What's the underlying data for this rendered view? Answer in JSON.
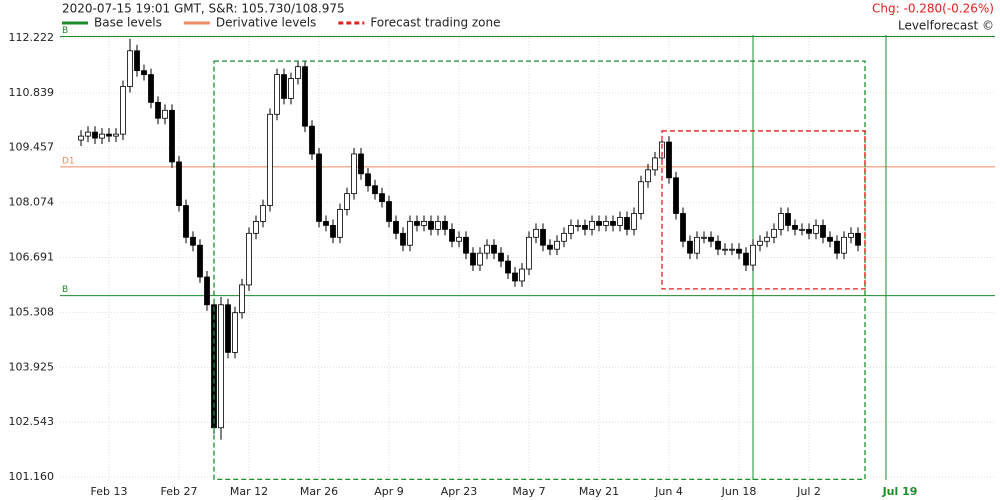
{
  "chart_data": {
    "type": "candlestick",
    "title": "2020-07-15 19:01 GMT,  S&R: 105.730/108.975",
    "change": "Chg: -0.280(-0.26%)",
    "brand": "Levelforecast ©",
    "legend": [
      {
        "name": "Base levels",
        "color": "#1a8c2a",
        "style": "solid"
      },
      {
        "name": "Derivative levels",
        "color": "#ef8a62",
        "style": "solid"
      },
      {
        "name": "Forecast trading zone",
        "color": "#e02020",
        "style": "dashed"
      }
    ],
    "categories": [
      null,
      null,
      null,
      null,
      "Feb 13",
      null,
      null,
      null,
      null,
      null,
      null,
      null,
      null,
      null,
      "Feb 27",
      null,
      null,
      null,
      null,
      null,
      null,
      null,
      null,
      null,
      "Mar 12",
      null,
      null,
      null,
      null,
      null,
      null,
      null,
      null,
      null,
      "Mar 26",
      null,
      null,
      null,
      null,
      null,
      null,
      null,
      null,
      null,
      "Apr 9",
      null,
      null,
      null,
      null,
      null,
      null,
      null,
      null,
      null,
      "Apr 23",
      null,
      null,
      null,
      null,
      null,
      null,
      null,
      null,
      null,
      "May 7",
      null,
      null,
      null,
      null,
      null,
      null,
      null,
      null,
      null,
      "May 21",
      null,
      null,
      null,
      null,
      null,
      null,
      null,
      null,
      null,
      "Jun 4",
      null,
      null,
      null,
      null,
      null,
      null,
      null,
      null,
      null,
      "Jun 18",
      null,
      null,
      null,
      null,
      null,
      null,
      null,
      null,
      null,
      "Jul 2",
      null,
      null,
      null,
      null,
      null,
      null,
      null,
      null,
      null,
      null,
      null,
      null,
      "Jul 19"
    ],
    "open": [
      109.65,
      109.75,
      109.85,
      109.7,
      109.8,
      109.75,
      109.8,
      111.0,
      111.9,
      111.4,
      111.3,
      110.6,
      110.2,
      110.4,
      109.1,
      108.0,
      107.2,
      107.0,
      106.2,
      105.5,
      102.4,
      105.5,
      104.3,
      105.3,
      106.0,
      107.3,
      107.6,
      108.0,
      110.3,
      111.3,
      110.7,
      111.2,
      111.5,
      110.0,
      109.3,
      107.6,
      107.5,
      107.2,
      107.9,
      108.3,
      109.3,
      108.8,
      108.5,
      108.3,
      108.1,
      107.6,
      107.3,
      107.0,
      107.6,
      107.5,
      107.6,
      107.4,
      107.6,
      107.4,
      107.1,
      107.2,
      106.8,
      106.5,
      106.8,
      107.0,
      106.8,
      106.6,
      106.3,
      106.1,
      106.4,
      107.2,
      107.4,
      107.0,
      106.9,
      107.1,
      107.3,
      107.5,
      107.5,
      107.4,
      107.6,
      107.5,
      107.6,
      107.5,
      107.7,
      107.4,
      107.8,
      108.6,
      108.9,
      109.2,
      109.6,
      108.7,
      107.8,
      107.1,
      106.8,
      107.2,
      107.2,
      107.1,
      106.9,
      106.9,
      106.9,
      106.8,
      106.5,
      107.0,
      107.1,
      107.2,
      107.4,
      107.8,
      107.5,
      107.4,
      107.4,
      107.3,
      107.5,
      107.2,
      107.1,
      106.8,
      107.2,
      107.3,
      null,
      null,
      null,
      null,
      null,
      null
    ],
    "high": [
      109.9,
      110.0,
      110.0,
      109.95,
      109.95,
      109.95,
      111.15,
      112.2,
      112.05,
      111.55,
      111.45,
      110.75,
      110.55,
      110.55,
      109.25,
      108.15,
      107.35,
      107.15,
      106.35,
      105.65,
      105.7,
      105.65,
      105.45,
      106.15,
      107.45,
      107.75,
      108.15,
      110.45,
      111.45,
      111.45,
      111.35,
      111.65,
      111.65,
      110.15,
      109.45,
      107.75,
      107.65,
      108.05,
      108.45,
      109.45,
      109.45,
      108.95,
      108.65,
      108.45,
      108.25,
      107.75,
      107.45,
      107.75,
      107.75,
      107.75,
      107.75,
      107.75,
      107.75,
      107.55,
      107.35,
      107.35,
      106.95,
      106.95,
      107.15,
      107.15,
      106.95,
      106.75,
      106.45,
      106.55,
      107.35,
      107.55,
      107.55,
      107.15,
      107.25,
      107.45,
      107.65,
      107.65,
      107.65,
      107.75,
      107.75,
      107.75,
      107.75,
      107.85,
      107.85,
      107.95,
      108.75,
      109.05,
      109.35,
      109.75,
      109.75,
      108.85,
      107.95,
      107.25,
      107.35,
      107.35,
      107.35,
      107.25,
      107.05,
      107.05,
      107.05,
      106.95,
      107.15,
      107.25,
      107.35,
      107.55,
      107.95,
      107.95,
      107.65,
      107.55,
      107.55,
      107.65,
      107.65,
      107.35,
      107.25,
      107.35,
      107.45,
      107.45,
      null,
      null,
      null,
      null,
      null,
      null
    ],
    "low": [
      109.5,
      109.6,
      109.55,
      109.55,
      109.6,
      109.6,
      109.65,
      110.85,
      111.25,
      111.15,
      110.45,
      110.05,
      110.05,
      108.95,
      107.85,
      107.05,
      106.85,
      106.05,
      105.35,
      102.25,
      102.1,
      104.15,
      104.15,
      105.15,
      105.85,
      107.15,
      107.45,
      107.85,
      110.15,
      110.55,
      110.55,
      111.05,
      109.85,
      109.15,
      107.45,
      107.35,
      107.05,
      107.05,
      107.75,
      108.15,
      108.65,
      108.35,
      108.15,
      107.95,
      107.45,
      107.15,
      106.85,
      106.85,
      107.35,
      107.35,
      107.25,
      107.25,
      107.25,
      106.95,
      106.95,
      106.65,
      106.35,
      106.35,
      106.65,
      106.65,
      106.45,
      106.15,
      105.95,
      105.95,
      106.25,
      107.05,
      106.85,
      106.75,
      106.75,
      106.95,
      107.15,
      107.35,
      107.25,
      107.25,
      107.35,
      107.35,
      107.35,
      107.35,
      107.25,
      107.25,
      107.65,
      108.45,
      108.75,
      109.05,
      108.55,
      107.65,
      106.95,
      106.65,
      106.65,
      107.05,
      106.95,
      106.75,
      106.75,
      106.75,
      106.65,
      106.35,
      106.35,
      106.85,
      106.95,
      107.05,
      107.25,
      107.35,
      107.25,
      107.25,
      107.15,
      107.15,
      107.05,
      106.95,
      106.65,
      106.65,
      107.05,
      106.85,
      null,
      null,
      null,
      null,
      null,
      null
    ],
    "close": [
      109.75,
      109.85,
      109.7,
      109.8,
      109.75,
      109.8,
      111.0,
      111.9,
      111.4,
      111.3,
      110.6,
      110.2,
      110.4,
      109.1,
      108.0,
      107.2,
      107.0,
      106.2,
      105.5,
      102.4,
      105.5,
      104.3,
      105.3,
      106.0,
      107.3,
      107.6,
      108.0,
      110.3,
      111.3,
      110.7,
      111.2,
      111.5,
      110.0,
      109.3,
      107.6,
      107.5,
      107.2,
      107.9,
      108.3,
      109.3,
      108.8,
      108.5,
      108.3,
      108.1,
      107.6,
      107.3,
      107.0,
      107.6,
      107.5,
      107.6,
      107.4,
      107.6,
      107.4,
      107.1,
      107.2,
      106.8,
      106.5,
      106.8,
      107.0,
      106.8,
      106.6,
      106.3,
      106.1,
      106.4,
      107.2,
      107.4,
      107.0,
      106.9,
      107.1,
      107.3,
      107.5,
      107.5,
      107.4,
      107.6,
      107.5,
      107.6,
      107.5,
      107.7,
      107.4,
      107.8,
      108.6,
      108.9,
      109.2,
      109.6,
      108.7,
      107.8,
      107.1,
      106.8,
      107.2,
      107.2,
      107.1,
      106.9,
      106.9,
      106.9,
      106.8,
      106.5,
      107.0,
      107.1,
      107.2,
      107.4,
      107.8,
      107.5,
      107.4,
      107.4,
      107.3,
      107.5,
      107.2,
      107.1,
      106.8,
      107.2,
      107.3,
      107.0,
      null,
      null,
      null,
      null,
      null,
      null
    ],
    "up_color": "#ffffff",
    "down_color": "#000000",
    "levels": [
      {
        "label": "B",
        "value": 112.26,
        "color": "#1a8c2a"
      },
      {
        "label": "D1",
        "value": 108.975,
        "color": "#ef8a62"
      },
      {
        "label": "B",
        "value": 105.73,
        "color": "#1a8c2a"
      }
    ],
    "time_levels": [
      96,
      115
    ],
    "time_level_color": "#1a8c2a",
    "zones": [
      {
        "x": [
          19,
          112
        ],
        "y": [
          101.1,
          111.64
        ],
        "color": "#1a8c2a"
      },
      {
        "x": [
          83,
          112
        ],
        "y": [
          105.9,
          109.88
        ],
        "color": "#e02020"
      }
    ],
    "ylim": [
      101.084,
      112.298
    ],
    "yticks": [
      {
        "value": 101.16,
        "label": "101.160"
      },
      102.543,
      103.925,
      105.308,
      106.691,
      108.074,
      109.457,
      110.839,
      112.222
    ],
    "grid": true
  }
}
